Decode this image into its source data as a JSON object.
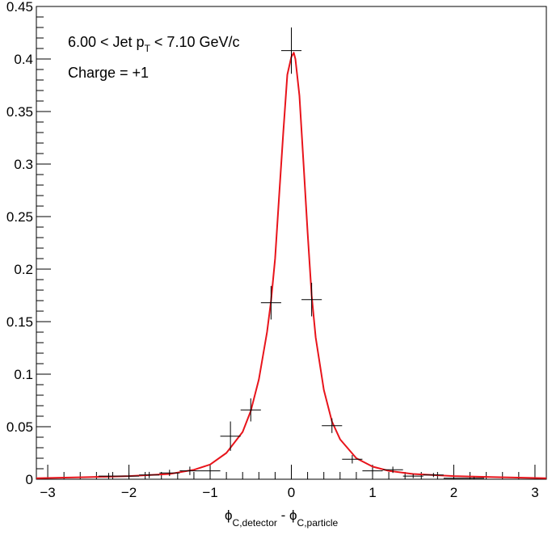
{
  "chart_data": {
    "type": "scatter",
    "title": "",
    "annotations": {
      "line1_prefix": "6.00 < Jet p",
      "line1_sub": "T",
      "line1_suffix": " < 7.10 GeV/c",
      "line2": "Charge = +1"
    },
    "xlabel": {
      "phi1": "ϕ",
      "sub1": "C,detector",
      "sep": " - ",
      "phi2": "ϕ",
      "sub2": "C,particle"
    },
    "ylabel": "",
    "xlim": [
      -3.14,
      3.14
    ],
    "ylim": [
      0,
      0.45
    ],
    "x_ticks": [
      -3,
      -2,
      -1,
      0,
      1,
      2,
      3
    ],
    "x_tick_labels": [
      "−3",
      "−2",
      "−1",
      "0",
      "1",
      "2",
      "3"
    ],
    "y_ticks": [
      0,
      0.05,
      0.1,
      0.15,
      0.2,
      0.25,
      0.3,
      0.35,
      0.4,
      0.45
    ],
    "y_tick_labels": [
      "0",
      "0.05",
      "0.1",
      "0.15",
      "0.2",
      "0.25",
      "0.3",
      "0.35",
      "0.4",
      "0.45"
    ],
    "grid": false,
    "legend": "none",
    "series": [
      {
        "kind": "histogram-points",
        "color": "#000000",
        "x": [
          -2.25,
          -2.0,
          -1.75,
          -1.5,
          -1.25,
          -1.0,
          -0.75,
          -0.5,
          -0.25,
          0.0,
          0.25,
          0.5,
          0.75,
          1.0,
          1.25,
          1.5,
          1.75,
          2.0,
          2.25
        ],
        "y": [
          0.003,
          0.003,
          0.004,
          0.006,
          0.008,
          0.008,
          0.041,
          0.066,
          0.168,
          0.408,
          0.171,
          0.051,
          0.019,
          0.008,
          0.009,
          0.003,
          0.004,
          0.001,
          0.001
        ],
        "x_err": 0.125,
        "y_err": [
          0.003,
          0.003,
          0.003,
          0.003,
          0.004,
          0.004,
          0.014,
          0.011,
          0.016,
          0.022,
          0.016,
          0.007,
          0.004,
          0.003,
          0.003,
          0.002,
          0.002,
          0.001,
          0.001
        ]
      },
      {
        "kind": "fit",
        "color": "#e8141b",
        "x": [
          -3.14,
          -2.5,
          -2.0,
          -1.5,
          -1.2,
          -1.0,
          -0.8,
          -0.6,
          -0.5,
          -0.4,
          -0.3,
          -0.25,
          -0.2,
          -0.15,
          -0.1,
          -0.05,
          0.0,
          0.03,
          0.05,
          0.1,
          0.15,
          0.2,
          0.25,
          0.3,
          0.4,
          0.5,
          0.6,
          0.8,
          1.0,
          1.2,
          1.5,
          2.0,
          2.5,
          3.14
        ],
        "y": [
          0.001,
          0.002,
          0.003,
          0.005,
          0.009,
          0.014,
          0.025,
          0.045,
          0.065,
          0.095,
          0.14,
          0.17,
          0.21,
          0.27,
          0.33,
          0.385,
          0.402,
          0.406,
          0.4,
          0.365,
          0.3,
          0.235,
          0.175,
          0.135,
          0.085,
          0.055,
          0.038,
          0.02,
          0.012,
          0.008,
          0.005,
          0.003,
          0.002,
          0.001
        ]
      }
    ]
  }
}
